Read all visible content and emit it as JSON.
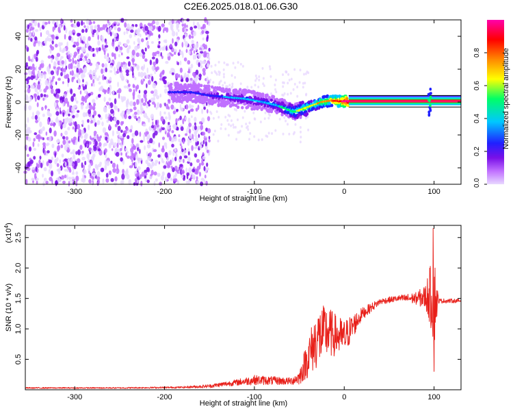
{
  "figure_title": "C2E6.2025.018.01.06.G30",
  "chart_data": [
    {
      "type": "heatmap",
      "title": "",
      "xlabel": "Height of straight line (km)",
      "ylabel": "Frequency (Hz)",
      "xlim": [
        -355,
        130
      ],
      "ylim": [
        -50,
        50
      ],
      "x_ticks": [
        -300,
        -200,
        -100,
        0,
        100
      ],
      "y_ticks": [
        -40,
        -20,
        0,
        20,
        40
      ],
      "x_tick_labels": [
        "-300",
        "-200",
        "-100",
        "0",
        "100"
      ],
      "y_tick_labels": [
        "-40",
        "-20",
        "0",
        "20",
        "40"
      ],
      "colorbar": {
        "label": "Normalized spectral amplitude",
        "range": [
          0,
          1
        ],
        "ticks": [
          0.0,
          0.2,
          0.4,
          0.6,
          0.8
        ],
        "tick_labels": [
          "0.0",
          "0.2",
          "0.4",
          "0.6",
          "0.8"
        ]
      },
      "noise_region_x": [
        -355,
        -150
      ],
      "signal_track": [
        {
          "x": -195,
          "y": 6,
          "a": 0.2
        },
        {
          "x": -170,
          "y": 6,
          "a": 0.22
        },
        {
          "x": -150,
          "y": 4,
          "a": 0.25
        },
        {
          "x": -130,
          "y": 3,
          "a": 0.3
        },
        {
          "x": -110,
          "y": 2,
          "a": 0.32
        },
        {
          "x": -90,
          "y": 0,
          "a": 0.35
        },
        {
          "x": -75,
          "y": -2,
          "a": 0.38
        },
        {
          "x": -65,
          "y": -4,
          "a": 0.45
        },
        {
          "x": -55,
          "y": -6,
          "a": 0.5
        },
        {
          "x": -45,
          "y": -4,
          "a": 0.55
        },
        {
          "x": -35,
          "y": -2,
          "a": 0.6
        },
        {
          "x": -25,
          "y": 0,
          "a": 0.65
        },
        {
          "x": -15,
          "y": 1,
          "a": 0.72
        },
        {
          "x": -5,
          "y": 0.5,
          "a": 0.8
        },
        {
          "x": 5,
          "y": 0.5,
          "a": 0.95
        },
        {
          "x": 130,
          "y": 0.5,
          "a": 0.95
        }
      ],
      "colors": {
        "scale": [
          "#e8d8ff",
          "#c070ff",
          "#7a10e8",
          "#2020ff",
          "#00c8ff",
          "#00ff66",
          "#ffff00",
          "#ff8800",
          "#ff0000",
          "#ff00aa"
        ]
      }
    },
    {
      "type": "line",
      "title": "",
      "xlabel": "Height of straight line (km)",
      "ylabel": "SNR (10 * v/v)",
      "y_multiplier": "(x10",
      "y_multiplier_exp": "4",
      "y_multiplier_close": ")",
      "xlim": [
        -355,
        130
      ],
      "ylim": [
        0,
        2.7
      ],
      "x_ticks": [
        -300,
        -200,
        -100,
        0,
        100
      ],
      "y_ticks": [
        0.5,
        1.0,
        1.5,
        2.0,
        2.5
      ],
      "x_tick_labels": [
        "-300",
        "-200",
        "-100",
        "0",
        "100"
      ],
      "y_tick_labels": [
        "0.5",
        "1.0",
        "1.5",
        "2.0",
        "2.5"
      ],
      "series": [
        {
          "color": "#e8201a",
          "envelope_x": [
            -355,
            -250,
            -180,
            -150,
            -120,
            -100,
            -80,
            -60,
            -50,
            -40,
            -30,
            -20,
            -10,
            0,
            20,
            40,
            60,
            80,
            90,
            95,
            100,
            105,
            130
          ],
          "envelope_mid": [
            0.03,
            0.03,
            0.04,
            0.06,
            0.12,
            0.16,
            0.15,
            0.14,
            0.2,
            0.55,
            0.85,
            0.95,
            0.9,
            0.85,
            1.25,
            1.45,
            1.5,
            1.5,
            1.52,
            1.55,
            1.48,
            1.46,
            1.46
          ],
          "envelope_amp": [
            0.01,
            0.01,
            0.015,
            0.03,
            0.05,
            0.08,
            0.07,
            0.06,
            0.12,
            0.35,
            0.5,
            0.45,
            0.35,
            0.3,
            0.1,
            0.05,
            0.05,
            0.1,
            0.2,
            0.45,
            0.8,
            0.04,
            0.03
          ],
          "spikes": [
            {
              "x": 99,
              "y": 2.65
            },
            {
              "x": 100,
              "y": 0.3
            }
          ]
        }
      ]
    }
  ]
}
